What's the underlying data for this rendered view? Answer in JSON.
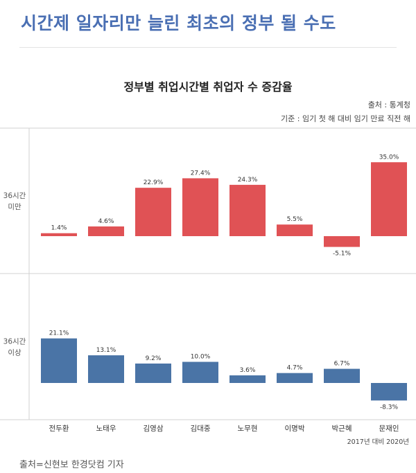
{
  "headline": "시간제 일자리만 늘린 최초의 정부 될 수도",
  "credit": "출처=신현보 한경닷컴 기자",
  "chart_data": {
    "type": "bar",
    "title": "정부별 취업시간별 취업자 수 증감율",
    "source_note": "출처 : 통계청",
    "basis_note": "기준 : 임기 첫 해 대비 임기 만료 직전 해",
    "footnote": "2017년 대비 2020년",
    "categories": [
      "전두환",
      "노태우",
      "김영삼",
      "김대중",
      "노무현",
      "이명박",
      "박근혜",
      "문재인"
    ],
    "grid": false,
    "series": [
      {
        "name": "36시간 미만",
        "row_label": [
          "36시간",
          "미만"
        ],
        "color": "#e05255",
        "values": [
          1.4,
          4.6,
          22.9,
          27.4,
          24.3,
          5.5,
          -5.1,
          35.0
        ],
        "labels": [
          "1.4%",
          "4.6%",
          "22.9%",
          "27.4%",
          "24.3%",
          "5.5%",
          "-5.1%",
          "35.0%"
        ]
      },
      {
        "name": "36시간 이상",
        "row_label": [
          "36시간",
          "이상"
        ],
        "color": "#4a74a6",
        "values": [
          21.1,
          13.1,
          9.2,
          10.0,
          3.6,
          4.7,
          6.7,
          -8.3
        ],
        "labels": [
          "21.1%",
          "13.1%",
          "9.2%",
          "10.0%",
          "3.6%",
          "4.7%",
          "6.7%",
          "-8.3%"
        ]
      }
    ]
  }
}
